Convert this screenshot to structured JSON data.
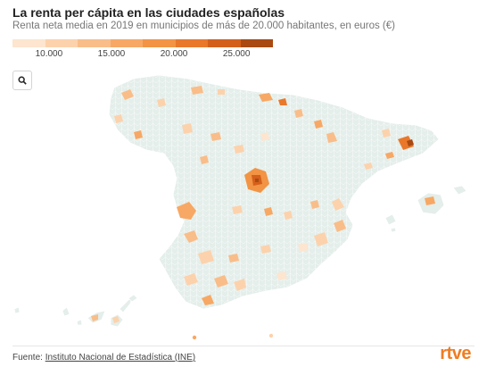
{
  "header": {
    "title": "La renta per cápita en las ciudades españolas",
    "subtitle": "Renta neta media en 2019 en municipios de más de 20.000 habitantes, en euros (€)"
  },
  "legend": {
    "colors": [
      "#fde5cf",
      "#fcd2ac",
      "#f9bd89",
      "#f7a864",
      "#f29443",
      "#e9782b",
      "#d45f1a",
      "#a94a12"
    ],
    "ticks": [
      "10.000",
      "15.000",
      "20.000",
      "25.000"
    ]
  },
  "map": {
    "base_color": "#e4eeea",
    "border_color": "#ffffff",
    "zoom_icon": "search-icon"
  },
  "footer": {
    "source_prefix": "Fuente: ",
    "source_link": "Instituto Nacional de Estadística (INE)",
    "logo": "rtve"
  }
}
